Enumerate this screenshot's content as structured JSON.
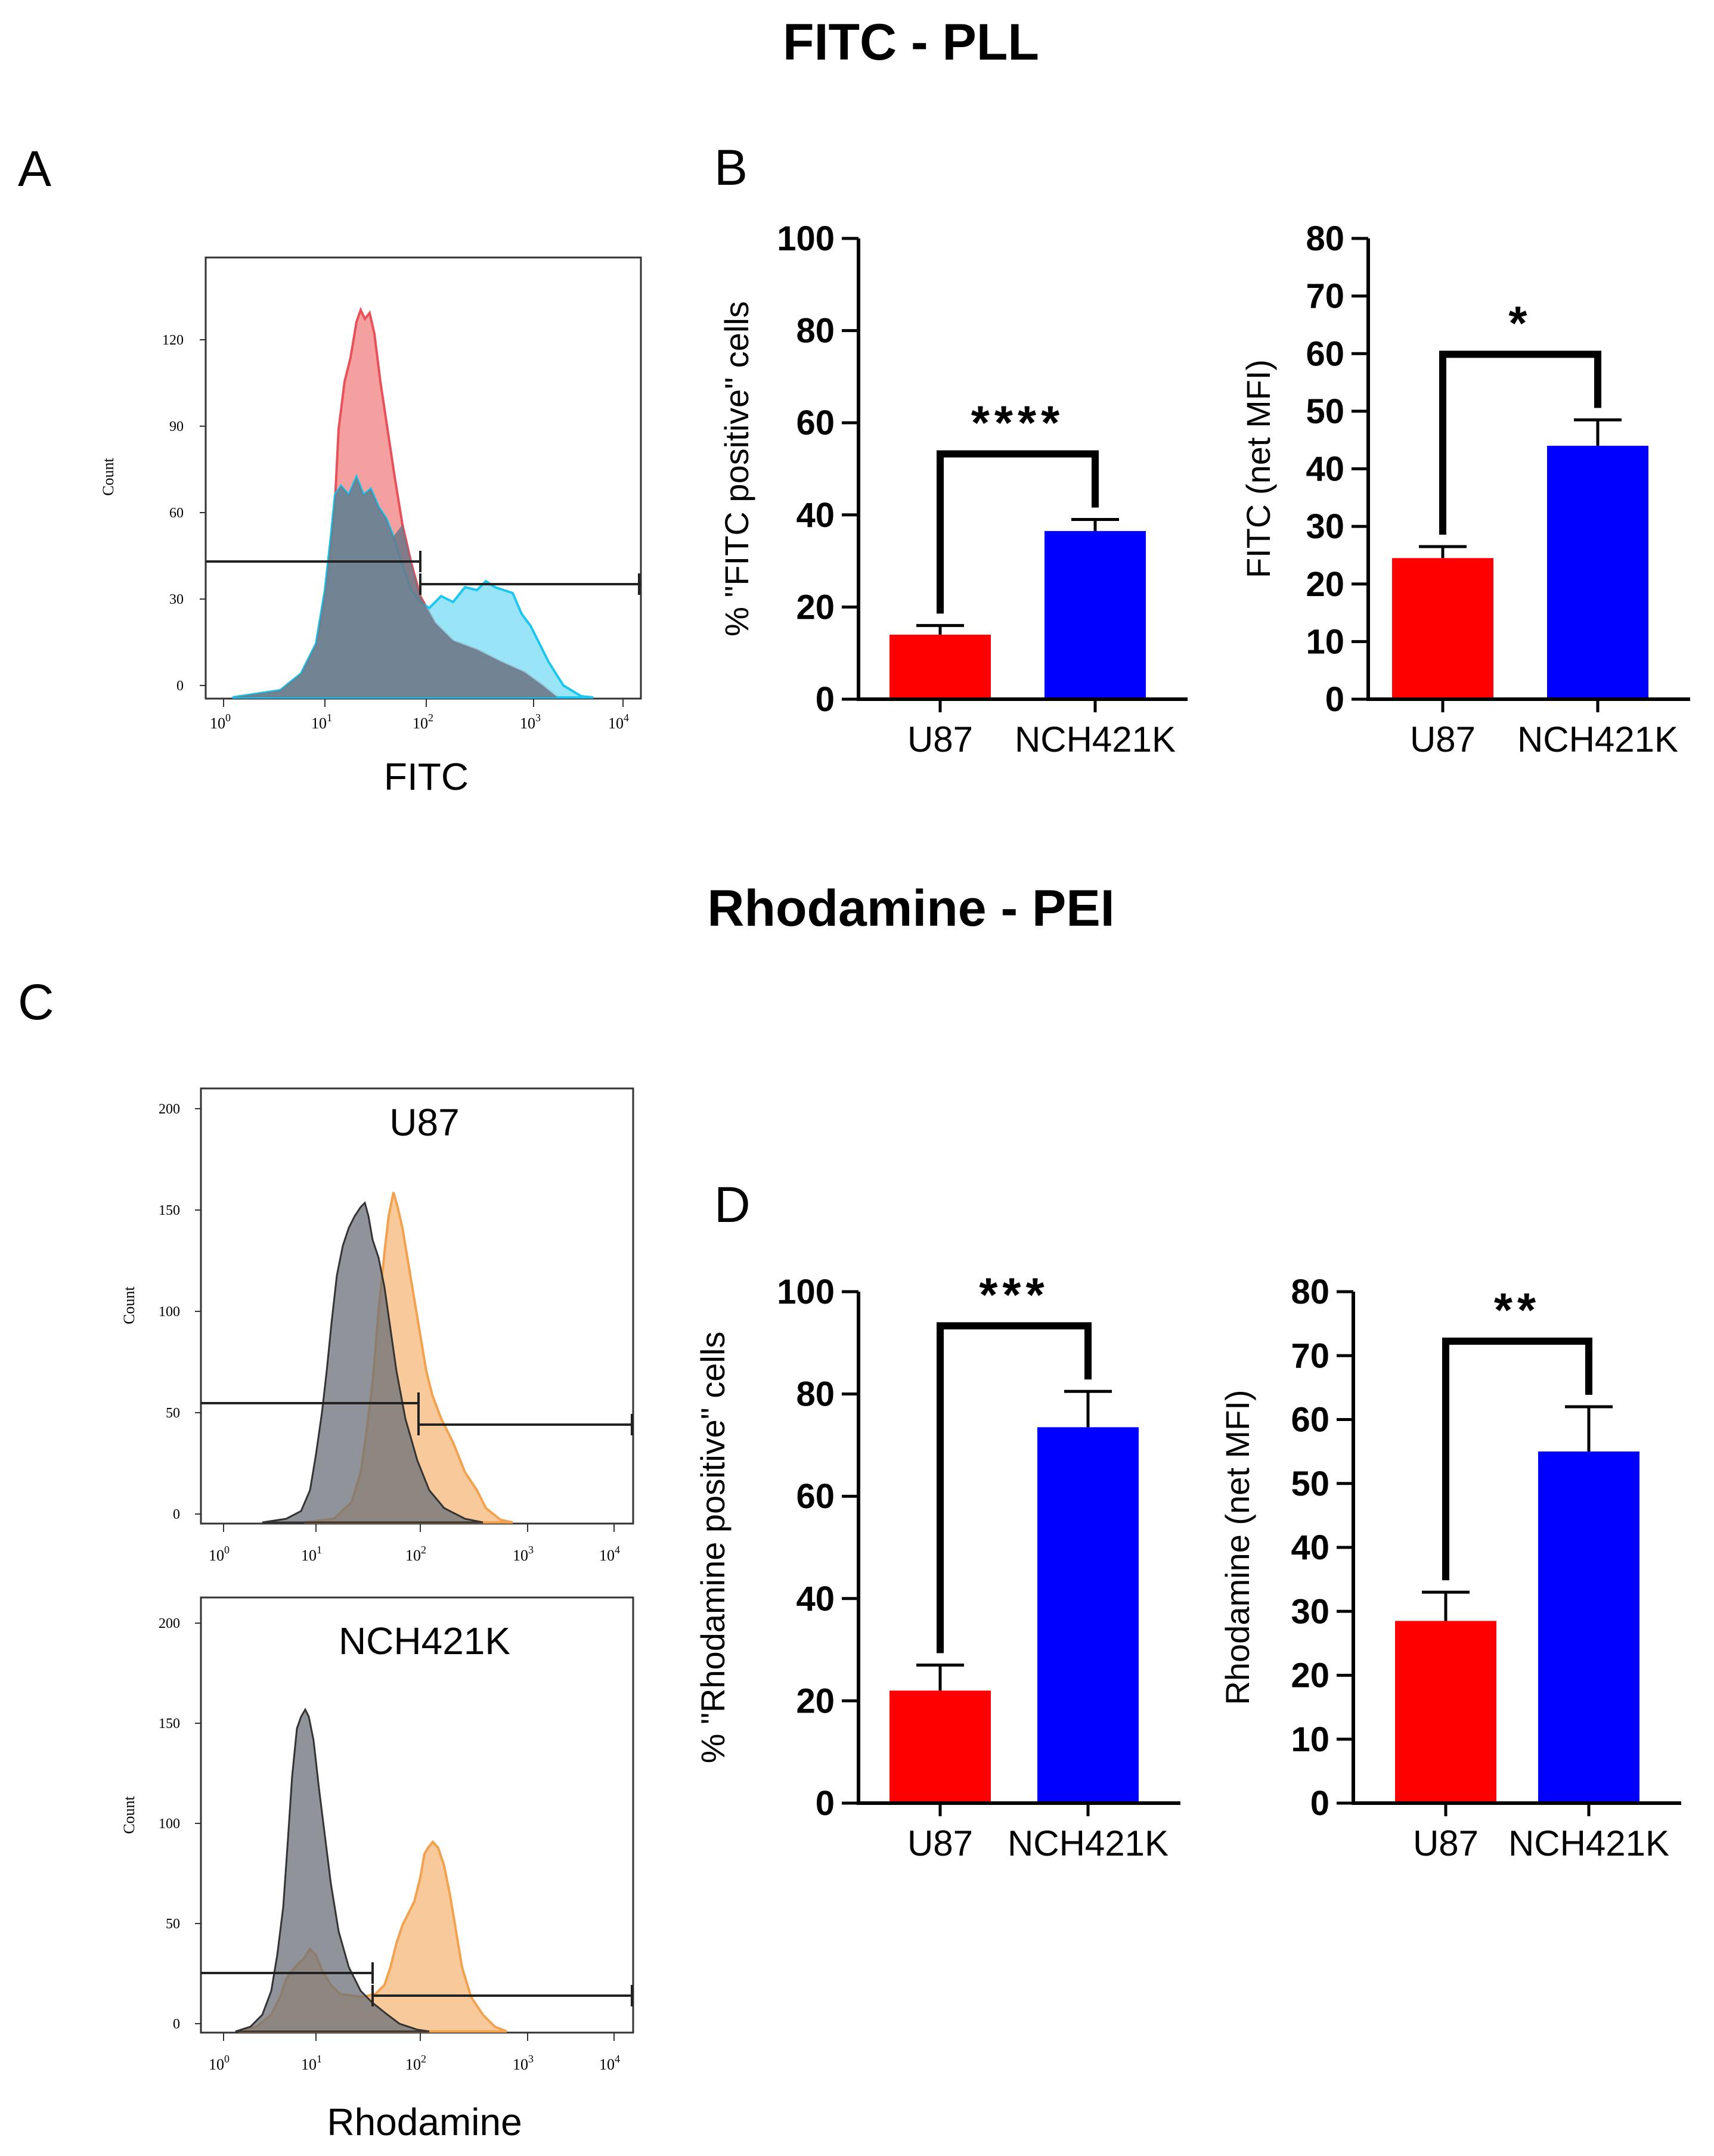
{
  "titles": {
    "top": "FITC - PLL",
    "mid": "Rhodamine - PEI"
  },
  "panel_labels": {
    "a": "A",
    "b": "B",
    "c": "C",
    "d": "D"
  },
  "colors": {
    "red": "#ff0000",
    "blue": "#0000ff",
    "hist_red": "#f4a0a0",
    "hist_red_line": "#e8505a",
    "hist_cyan": "#80dff5",
    "hist_cyan_line": "#1cc6ee",
    "hist_gray": "#6b7078",
    "hist_orange": "#f7c08a",
    "hist_orange_line": "#f2a24e"
  },
  "histA": {
    "xlabel": "FITC",
    "ylabel": "Count",
    "yticks": [
      "0",
      "30",
      "60",
      "90",
      "120"
    ],
    "xticks": [
      {
        "base": "10",
        "exp": "0"
      },
      {
        "base": "10",
        "exp": "1"
      },
      {
        "base": "10",
        "exp": "2"
      },
      {
        "base": "10",
        "exp": "3"
      },
      {
        "base": "10",
        "exp": "4"
      }
    ]
  },
  "histC1": {
    "title": "U87",
    "ylabel": "Count",
    "yticks": [
      "0",
      "50",
      "100",
      "150",
      "200"
    ],
    "xticks": [
      {
        "base": "10",
        "exp": "0"
      },
      {
        "base": "10",
        "exp": "1"
      },
      {
        "base": "10",
        "exp": "2"
      },
      {
        "base": "10",
        "exp": "3"
      },
      {
        "base": "10",
        "exp": "4"
      }
    ]
  },
  "histC2": {
    "title": "NCH421K",
    "ylabel": "Count",
    "xlabel": "Rhodamine",
    "yticks": [
      "0",
      "50",
      "100",
      "150",
      "200"
    ],
    "xticks": [
      {
        "base": "10",
        "exp": "0"
      },
      {
        "base": "10",
        "exp": "1"
      },
      {
        "base": "10",
        "exp": "2"
      },
      {
        "base": "10",
        "exp": "3"
      },
      {
        "base": "10",
        "exp": "4"
      }
    ]
  },
  "chart_data": [
    {
      "type": "bar",
      "panel": "B-left",
      "ylabel": "% \"FITC positive\" cells",
      "categories": [
        "U87",
        "NCH421K"
      ],
      "values": [
        14,
        36.5
      ],
      "errors": [
        2,
        2.5
      ],
      "ylim": [
        0,
        100
      ],
      "yticks": [
        "0",
        "20",
        "40",
        "60",
        "80",
        "100"
      ],
      "significance": "****"
    },
    {
      "type": "bar",
      "panel": "B-right",
      "ylabel": "FITC (net MFI)",
      "categories": [
        "U87",
        "NCH421K"
      ],
      "values": [
        24.5,
        44
      ],
      "errors": [
        2,
        4.5
      ],
      "ylim": [
        0,
        80
      ],
      "yticks": [
        "0",
        "10",
        "20",
        "30",
        "40",
        "50",
        "60",
        "70",
        "80"
      ],
      "significance": "*"
    },
    {
      "type": "bar",
      "panel": "D-left",
      "ylabel": "% \"Rhodamine positive\" cells",
      "categories": [
        "U87",
        "NCH421K"
      ],
      "values": [
        22,
        73.5
      ],
      "errors": [
        5,
        7
      ],
      "ylim": [
        0,
        100
      ],
      "yticks": [
        "0",
        "20",
        "40",
        "60",
        "80",
        "100"
      ],
      "significance": "***"
    },
    {
      "type": "bar",
      "panel": "D-right",
      "ylabel": "Rhodamine (net MFI)",
      "categories": [
        "U87",
        "NCH421K"
      ],
      "values": [
        28.5,
        55
      ],
      "errors": [
        4.5,
        7
      ],
      "ylim": [
        0,
        80
      ],
      "yticks": [
        "0",
        "10",
        "20",
        "30",
        "40",
        "50",
        "60",
        "70",
        "80"
      ],
      "significance": "**"
    }
  ]
}
